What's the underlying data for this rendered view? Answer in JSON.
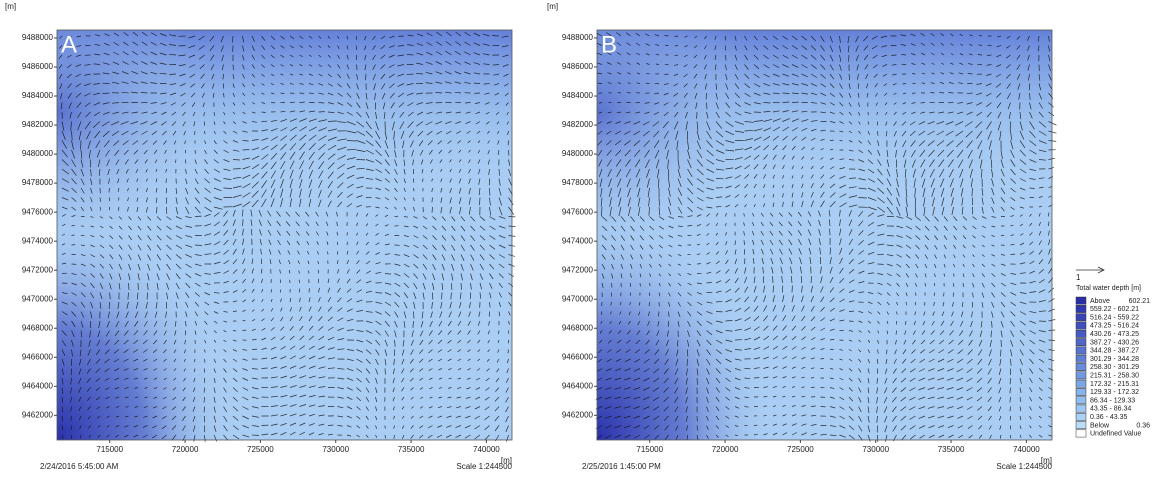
{
  "panels": [
    {
      "label": "A",
      "y_unit": "[m]",
      "x_unit": "[m]",
      "date": "2/24/2016 5:45:00 AM",
      "scale": "Scale 1:244500",
      "xlim": [
        711500,
        741700
      ],
      "ylim": [
        9460300,
        9488550
      ],
      "xticks": [
        715000,
        720000,
        725000,
        730000,
        735000,
        740000
      ],
      "yticks": [
        9462000,
        9464000,
        9466000,
        9468000,
        9470000,
        9472000,
        9474000,
        9476000,
        9478000,
        9480000,
        9482000,
        9484000,
        9486000,
        9488000
      ]
    },
    {
      "label": "B",
      "y_unit": "[m]",
      "x_unit": "[m]",
      "date": "2/25/2016 1:45:00 PM",
      "scale": "Scale 1:244500",
      "xlim": [
        711500,
        741700
      ],
      "ylim": [
        9460300,
        9488550
      ],
      "xticks": [
        715000,
        720000,
        725000,
        730000,
        735000,
        740000
      ],
      "yticks": [
        9462000,
        9464000,
        9466000,
        9468000,
        9470000,
        9472000,
        9474000,
        9476000,
        9478000,
        9480000,
        9482000,
        9484000,
        9486000,
        9488000
      ]
    }
  ],
  "legend": {
    "arrow_label": "1",
    "title": "Total water depth [m]",
    "items": [
      {
        "label": "Above",
        "range": "602.21",
        "color": "#2a2ea6"
      },
      {
        "label": "559.22 - 602.21",
        "color": "#3138ad"
      },
      {
        "label": "516.24 - 559.22",
        "color": "#3843b4"
      },
      {
        "label": "473.25 - 516.24",
        "color": "#404fbb"
      },
      {
        "label": "430.26 - 473.25",
        "color": "#485bc2"
      },
      {
        "label": "387.27 - 430.26",
        "color": "#5067c8"
      },
      {
        "label": "344.28 - 387.27",
        "color": "#5874cf"
      },
      {
        "label": "301.29 - 344.28",
        "color": "#6080d5"
      },
      {
        "label": "258.30 - 301.29",
        "color": "#698cdb"
      },
      {
        "label": "215.31 - 258.30",
        "color": "#7298e0"
      },
      {
        "label": "172.32 - 215.31",
        "color": "#7ca5e6"
      },
      {
        "label": "129.33 - 172.32",
        "color": "#86b1eb"
      },
      {
        "label": "86.34 - 129.33",
        "color": "#91bdef"
      },
      {
        "label": "43.35 - 86.34",
        "color": "#9dc8f3"
      },
      {
        "label": "0.36 - 43.35",
        "color": "#aad2f6"
      },
      {
        "label": "Below",
        "range": "0.36",
        "color": "#b9dcf9"
      },
      {
        "label": "Undefined Value",
        "color": "#ffffff"
      }
    ]
  }
}
